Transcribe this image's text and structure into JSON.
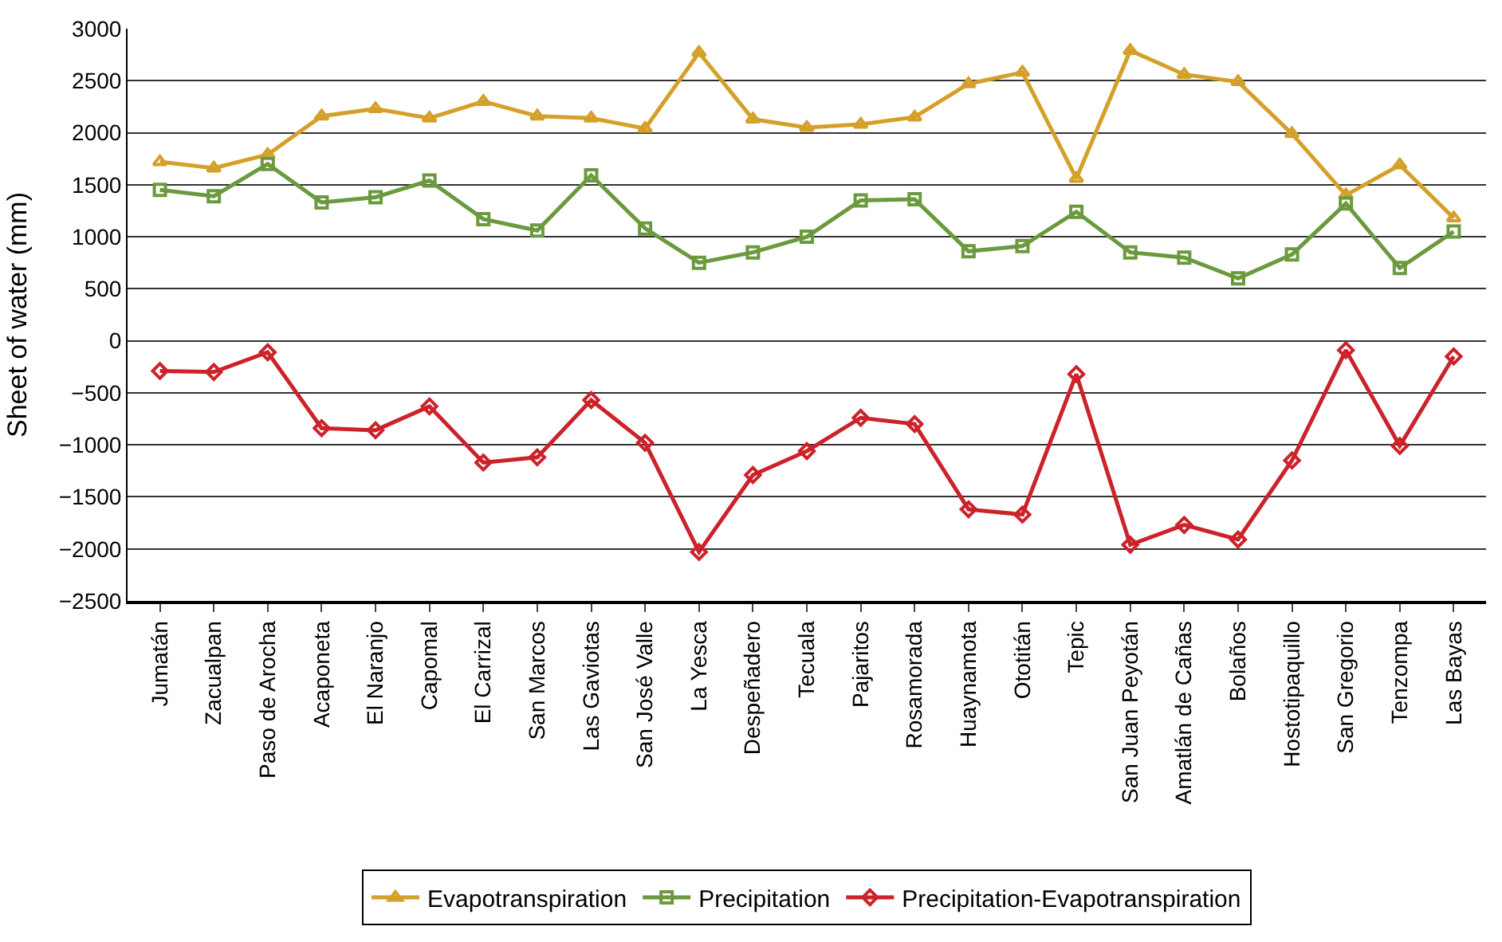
{
  "chart_data": {
    "type": "line",
    "ylabel": "Sheet of water (mm)",
    "categories": [
      "Jumatán",
      "Zacualpan",
      "Paso de Arocha",
      "Acaponeta",
      "El Naranjo",
      "Capomal",
      "El Carrizal",
      "San Marcos",
      "Las Gaviotas",
      "San José Valle",
      "La Yesca",
      "Despeñadero",
      "Tecuala",
      "Pajaritos",
      "Rosamorada",
      "Huaynamota",
      "Ototitán",
      "Tepic",
      "San Juan Peyotán",
      "Amatlán de Cañas",
      "Bolaños",
      "Hostotipaquillo",
      "San Gregorio",
      "Tenzompa",
      "Las Bayas"
    ],
    "series": [
      {
        "name": "Evapotranspiration",
        "color": "#d4a02a",
        "marker": "triangle",
        "values": [
          1720,
          1660,
          1790,
          2160,
          2230,
          2140,
          2300,
          2160,
          2140,
          2040,
          2770,
          2130,
          2050,
          2080,
          2150,
          2470,
          2580,
          1560,
          2790,
          2560,
          2490,
          1990,
          1400,
          1690,
          1180
        ]
      },
      {
        "name": "Precipitation",
        "color": "#6b9a3e",
        "marker": "square",
        "values": [
          1450,
          1390,
          1700,
          1330,
          1380,
          1540,
          1170,
          1060,
          1590,
          1080,
          750,
          850,
          1000,
          1350,
          1360,
          860,
          910,
          1240,
          850,
          800,
          600,
          830,
          1320,
          700,
          1050
        ]
      },
      {
        "name": "Precipitation-Evapotranspiration",
        "color": "#cc2229",
        "marker": "diamond",
        "values": [
          -290,
          -300,
          -110,
          -840,
          -860,
          -630,
          -1170,
          -1120,
          -570,
          -980,
          -2030,
          -1290,
          -1060,
          -740,
          -800,
          -1620,
          -1670,
          -320,
          -1960,
          -1770,
          -1910,
          -1150,
          -90,
          -1010,
          -150
        ]
      }
    ],
    "ylim": [
      -2500,
      3000
    ],
    "yticks": [
      -2500,
      -2000,
      -1500,
      -1000,
      -500,
      0,
      500,
      1000,
      1500,
      2000,
      2500,
      3000
    ],
    "grid": "y",
    "legend": "bottom",
    "line_style": "solid"
  }
}
